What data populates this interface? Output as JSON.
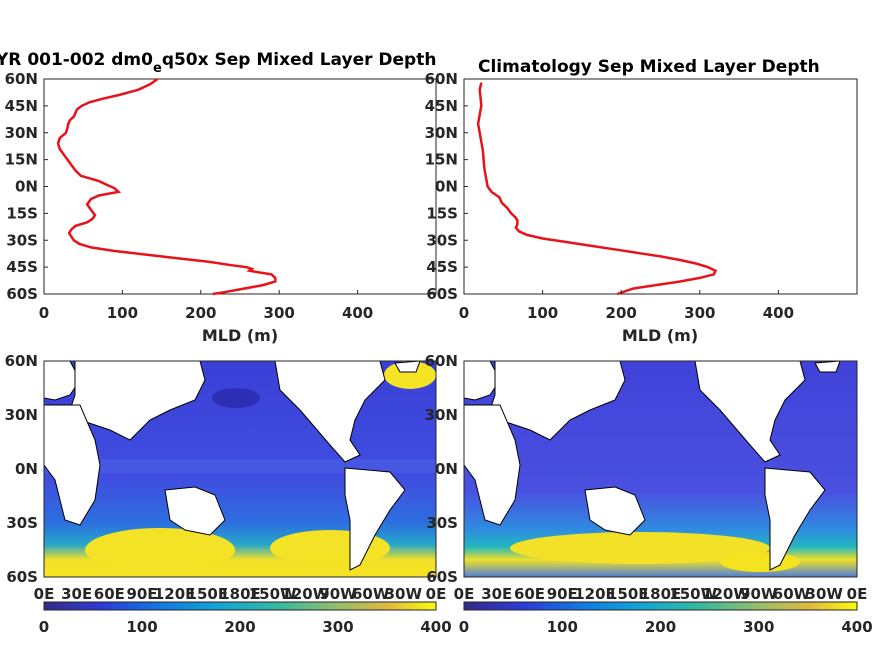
{
  "chart_data": [
    {
      "type": "line",
      "title_main": "YR 001-002 dm0",
      "title_sub": "e",
      "title_rest": "q50x Sep Mixed Layer Depth",
      "xlabel": "MLD (m)",
      "ylabel": "",
      "xlim": [
        0,
        500
      ],
      "ylim": [
        -60,
        60
      ],
      "x_ticks": [
        "0",
        "100",
        "200",
        "300",
        "400"
      ],
      "y_ticks": [
        "60N",
        "45N",
        "30N",
        "15N",
        "0N",
        "15S",
        "30S",
        "45S",
        "60S"
      ],
      "line_color": "#e8131a",
      "series": [
        {
          "y": [
            60,
            57,
            54,
            51,
            49,
            47,
            45,
            43,
            41,
            39,
            37,
            35,
            33,
            30,
            27,
            24,
            21,
            18,
            15,
            12,
            9,
            6,
            3,
            1,
            -1,
            -3,
            -5,
            -7,
            -10,
            -13,
            -16,
            -18,
            -20,
            -22,
            -24,
            -26,
            -28,
            -30,
            -32,
            -34,
            -36,
            -38,
            -40,
            -42,
            -44,
            -45,
            -46,
            -47,
            -48,
            -49,
            -51,
            -53,
            -55,
            -57,
            -59,
            -60
          ],
          "x": [
            145,
            135,
            120,
            95,
            75,
            58,
            48,
            42,
            40,
            38,
            33,
            31,
            30,
            28,
            20,
            18,
            20,
            25,
            30,
            35,
            40,
            47,
            70,
            80,
            90,
            95,
            70,
            60,
            55,
            60,
            65,
            62,
            55,
            40,
            35,
            32,
            35,
            38,
            45,
            60,
            90,
            130,
            170,
            210,
            240,
            258,
            265,
            262,
            275,
            290,
            295,
            295,
            280,
            255,
            230,
            215
          ]
        }
      ]
    },
    {
      "type": "line",
      "title": "Climatology Sep Mixed Layer Depth",
      "xlabel": "MLD (m)",
      "ylabel": "",
      "xlim": [
        0,
        500
      ],
      "ylim": [
        -60,
        60
      ],
      "x_ticks": [
        "0",
        "100",
        "200",
        "300",
        "400"
      ],
      "y_ticks": [
        "60N",
        "45N",
        "30N",
        "15N",
        "0N",
        "15S",
        "30S",
        "45S",
        "60S"
      ],
      "line_color": "#e8131a",
      "series": [
        {
          "y": [
            58,
            54,
            50,
            45,
            40,
            35,
            30,
            25,
            20,
            15,
            10,
            5,
            0,
            -3,
            -6,
            -9,
            -12,
            -15,
            -17,
            -19,
            -21,
            -23,
            -25,
            -27,
            -29,
            -31,
            -33,
            -35,
            -37,
            -39,
            -41,
            -43,
            -45,
            -47,
            -49,
            -51,
            -53,
            -55,
            -57,
            -60
          ],
          "x": [
            22,
            20,
            21,
            22,
            20,
            18,
            20,
            22,
            24,
            25,
            26,
            28,
            30,
            35,
            45,
            48,
            55,
            60,
            65,
            68,
            68,
            66,
            70,
            80,
            100,
            130,
            160,
            190,
            220,
            250,
            275,
            295,
            310,
            320,
            318,
            300,
            275,
            245,
            215,
            195
          ]
        }
      ]
    },
    {
      "type": "heatmap",
      "colormap": "parula",
      "clim": [
        0,
        400
      ],
      "x_ticks": [
        "0E",
        "30E",
        "60E",
        "90E",
        "120E",
        "150E",
        "180E",
        "150W",
        "120W",
        "90W",
        "60W",
        "30W",
        "0E"
      ],
      "y_ticks": [
        "60N",
        "30N",
        "0N",
        "30S",
        "60S"
      ],
      "colorbar_ticks": [
        "0",
        "100",
        "200",
        "300",
        "400"
      ]
    },
    {
      "type": "heatmap",
      "colormap": "parula",
      "clim": [
        0,
        400
      ],
      "x_ticks": [
        "0E",
        "30E",
        "60E",
        "90E",
        "120E",
        "150E",
        "180E",
        "150W",
        "120W",
        "90W",
        "60W",
        "30W",
        "0E"
      ],
      "y_ticks": [
        "60N",
        "30N",
        "0N",
        "30S",
        "60S"
      ],
      "colorbar_ticks": [
        "0",
        "100",
        "200",
        "300",
        "400"
      ]
    }
  ]
}
